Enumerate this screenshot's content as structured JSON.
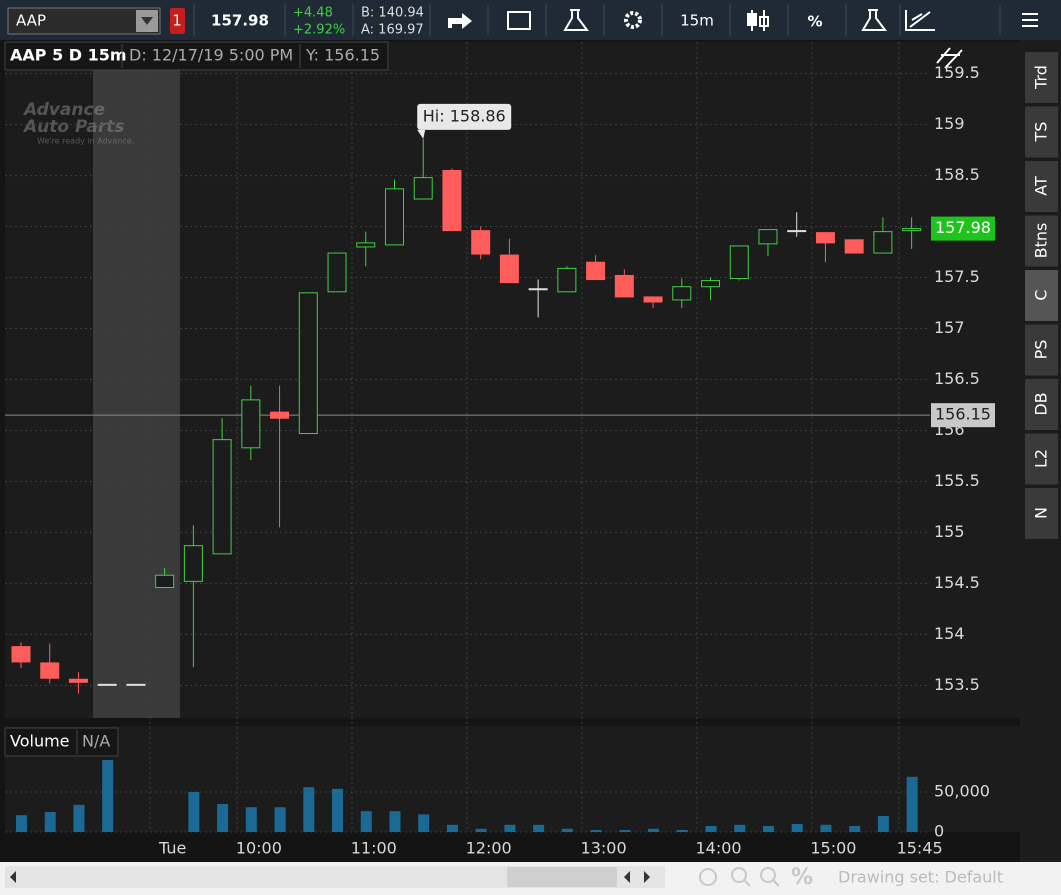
{
  "toolbar": {
    "symbol": "AAP",
    "alert_count": "1",
    "last": "157.98",
    "change": "+4.48",
    "change_percent": "+2.92%",
    "bid": "B: 140.94",
    "ask": "A: 169.97",
    "aggregation": "15m",
    "percent": "%"
  },
  "chart_header": {
    "title": "AAP 5 D 15m",
    "date": "D: 12/17/19 5:00 PM",
    "y": "Y: 156.15"
  },
  "side_tabs": [
    "Trd",
    "TS",
    "AT",
    "Btns",
    "C",
    "PS",
    "DB",
    "L2",
    "N"
  ],
  "footer": {
    "drawing_set": "Drawing set: Default"
  },
  "chart_data": [
    {
      "type": "candlestick",
      "categories": [
        null,
        null,
        null,
        null,
        null,
        "Tue",
        null,
        null,
        "10:00",
        null,
        null,
        null,
        "11:00",
        null,
        null,
        null,
        "12:00",
        null,
        null,
        null,
        "13:00",
        null,
        null,
        null,
        "14:00",
        null,
        null,
        null,
        "15:00",
        null,
        null,
        "15:45"
      ],
      "open": [
        153.88,
        153.72,
        153.56,
        153.51,
        153.51,
        154.46,
        154.52,
        154.79,
        155.83,
        156.18,
        155.97,
        157.36,
        157.8,
        157.82,
        158.27,
        158.55,
        157.96,
        157.72,
        157.39,
        157.36,
        157.65,
        157.52,
        157.31,
        157.28,
        157.41,
        157.49,
        157.83,
        157.96,
        157.94,
        157.87,
        157.74,
        157.96
      ],
      "high": [
        153.92,
        153.91,
        153.63,
        153.51,
        153.51,
        154.65,
        155.07,
        156.12,
        156.44,
        156.44,
        157.35,
        157.74,
        157.95,
        158.46,
        158.86,
        158.57,
        158.0,
        157.88,
        157.48,
        157.61,
        157.72,
        157.58,
        157.31,
        157.49,
        157.5,
        157.81,
        157.97,
        158.14,
        157.94,
        157.87,
        158.09,
        158.09
      ],
      "low": [
        153.67,
        153.52,
        153.42,
        153.51,
        153.51,
        154.46,
        153.68,
        154.79,
        155.71,
        155.05,
        155.97,
        157.36,
        157.61,
        157.82,
        158.27,
        157.96,
        157.68,
        157.45,
        157.11,
        157.36,
        157.48,
        157.31,
        157.2,
        157.2,
        157.28,
        157.47,
        157.71,
        157.9,
        157.65,
        157.74,
        157.74,
        157.78
      ],
      "close": [
        153.73,
        153.57,
        153.53,
        153.51,
        153.51,
        154.58,
        154.87,
        155.91,
        156.3,
        156.12,
        157.35,
        157.74,
        157.84,
        158.37,
        158.48,
        157.96,
        157.73,
        157.45,
        157.39,
        157.59,
        157.48,
        157.31,
        157.26,
        157.41,
        157.47,
        157.81,
        157.97,
        157.96,
        157.84,
        157.74,
        157.95,
        157.98
      ],
      "ylim": [
        153.18,
        159.81
      ],
      "yticks": [
        153.5,
        154,
        154.5,
        155,
        155.5,
        156,
        156.5,
        157,
        157.5,
        158,
        158.5,
        159,
        159.5
      ],
      "grid": true,
      "up_color": "#3fd13f",
      "down_color": "#ff5c5c",
      "flat_color": "#e0e0e0",
      "high_label": "Hi: 158.86",
      "last_price": 157.98,
      "cursor_price": 156.15
    },
    {
      "type": "bar",
      "title": "Volume",
      "subtitle": "N/A",
      "values": [
        21000,
        25000,
        34000,
        90000,
        0,
        0,
        50000,
        35000,
        31000,
        31000,
        56000,
        54000,
        26000,
        26000,
        22000,
        9000,
        4000,
        9000,
        9000,
        4000,
        2500,
        2500,
        4000,
        2500,
        7500,
        9000,
        7500,
        10000,
        9000,
        7500,
        20000,
        69000
      ],
      "color": "#1b6a96",
      "ylim": [
        0,
        93750
      ],
      "yticks": [
        0,
        {
          "value": 50000,
          "label": "50,000"
        }
      ]
    }
  ]
}
